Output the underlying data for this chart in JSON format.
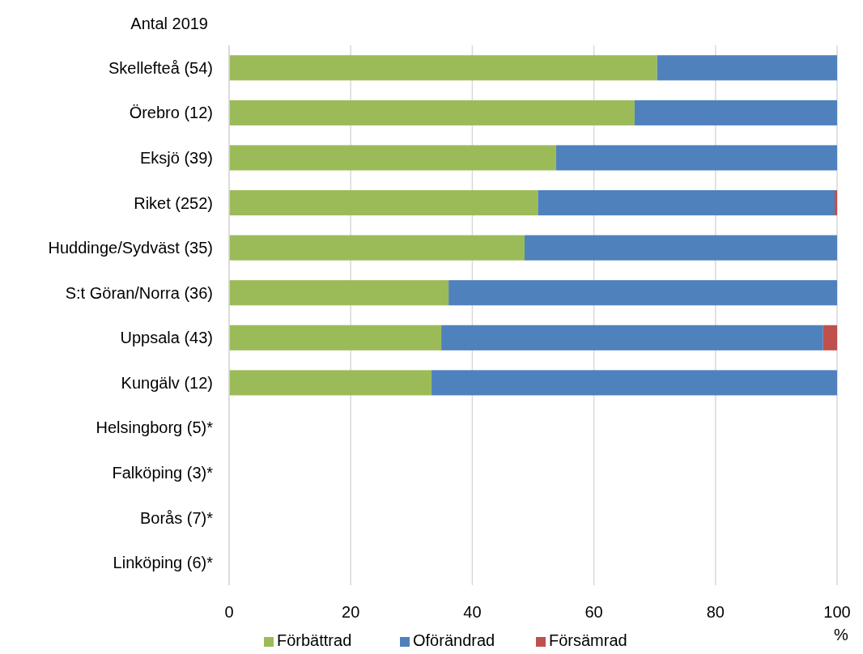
{
  "chart_data": {
    "type": "bar",
    "orientation": "horizontal",
    "stacked": true,
    "ylabel": "Antal 2019",
    "xlabel": "%",
    "categories": [
      "Skellefteå (54)",
      "Örebro (12)",
      "Eksjö (39)",
      "Riket (252)",
      "Huddinge/Sydväst (35)",
      "S:t Göran/Norra (36)",
      "Uppsala (43)",
      "Kungälv (12)",
      "Helsingborg (5)*",
      "Falköping (3)*",
      "Borås (7)*",
      "Linköping (6)*"
    ],
    "series": [
      {
        "name": "Förbättrad",
        "color": "#9bbb59",
        "values": [
          70.4,
          66.7,
          53.8,
          50.8,
          48.6,
          36.1,
          34.9,
          33.3,
          null,
          null,
          null,
          null
        ]
      },
      {
        "name": "Oförändrad",
        "color": "#4f81bd",
        "values": [
          29.6,
          33.3,
          46.2,
          48.8,
          51.4,
          63.9,
          62.8,
          66.7,
          null,
          null,
          null,
          null
        ]
      },
      {
        "name": "Försämrad",
        "color": "#c0504d",
        "values": [
          0,
          0,
          0,
          0.4,
          0,
          0,
          2.3,
          0,
          null,
          null,
          null,
          null
        ]
      }
    ],
    "xlim": [
      0,
      100
    ],
    "xticks": [
      0,
      20,
      40,
      60,
      80,
      100
    ],
    "grid": "x",
    "legend": "bottom"
  }
}
